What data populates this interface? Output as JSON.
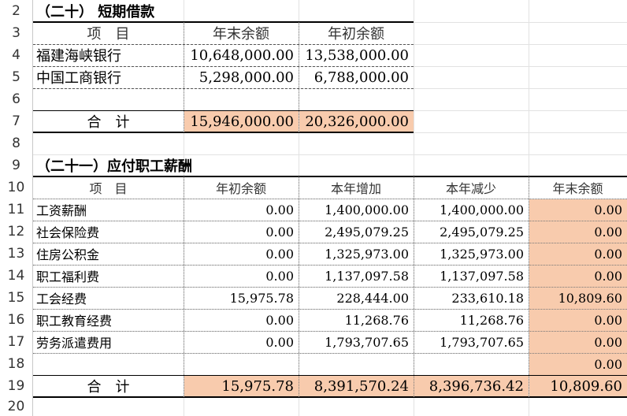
{
  "row_numbers": [
    "2",
    "3",
    "4",
    "5",
    "6",
    "7",
    "8",
    "9",
    "10",
    "11",
    "12",
    "13",
    "14",
    "15",
    "16",
    "17",
    "18",
    "19",
    "20"
  ],
  "section1": {
    "title": "（二十）  短期借款",
    "headers": [
      "项　目",
      "年末余额",
      "年初余额"
    ],
    "rows": [
      {
        "item": "福建海峡银行",
        "end": "10,648,000.00",
        "begin": "13,538,000.00"
      },
      {
        "item": "中国工商银行",
        "end": "5,298,000.00",
        "begin": "6,788,000.00"
      },
      {
        "item": "",
        "end": "",
        "begin": ""
      }
    ],
    "total": {
      "label": "合　计",
      "end": "15,946,000.00",
      "begin": "20,326,000.00"
    }
  },
  "section2": {
    "title": "（二十一）应付职工薪酬",
    "headers": [
      "项　目",
      "年初余额",
      "本年增加",
      "本年减少",
      "年末余额"
    ],
    "rows": [
      {
        "item": "工资薪酬",
        "begin": "0.00",
        "inc": "1,400,000.00",
        "dec": "1,400,000.00",
        "end": "0.00"
      },
      {
        "item": "社会保险费",
        "begin": "0.00",
        "inc": "2,495,079.25",
        "dec": "2,495,079.25",
        "end": "0.00"
      },
      {
        "item": "住房公积金",
        "begin": "0.00",
        "inc": "1,325,973.00",
        "dec": "1,325,973.00",
        "end": "0.00"
      },
      {
        "item": "职工福利费",
        "begin": "0.00",
        "inc": "1,137,097.58",
        "dec": "1,137,097.58",
        "end": "0.00"
      },
      {
        "item": "工会经费",
        "begin": "15,975.78",
        "inc": "228,444.00",
        "dec": "233,610.18",
        "end": "10,809.60"
      },
      {
        "item": "职工教育经费",
        "begin": "0.00",
        "inc": "11,268.76",
        "dec": "11,268.76",
        "end": "0.00"
      },
      {
        "item": "劳务派遣费用",
        "begin": "0.00",
        "inc": "1,793,707.65",
        "dec": "1,793,707.65",
        "end": "0.00"
      },
      {
        "item": "",
        "begin": "",
        "inc": "",
        "dec": "",
        "end": "0.00"
      }
    ],
    "total": {
      "label": "合　计",
      "begin": "15,975.78",
      "inc": "8,391,570.24",
      "dec": "8,396,736.42",
      "end": "10,809.60"
    }
  },
  "colors": {
    "highlight": "#f8cbad",
    "gridline": "#e2e2e2"
  }
}
